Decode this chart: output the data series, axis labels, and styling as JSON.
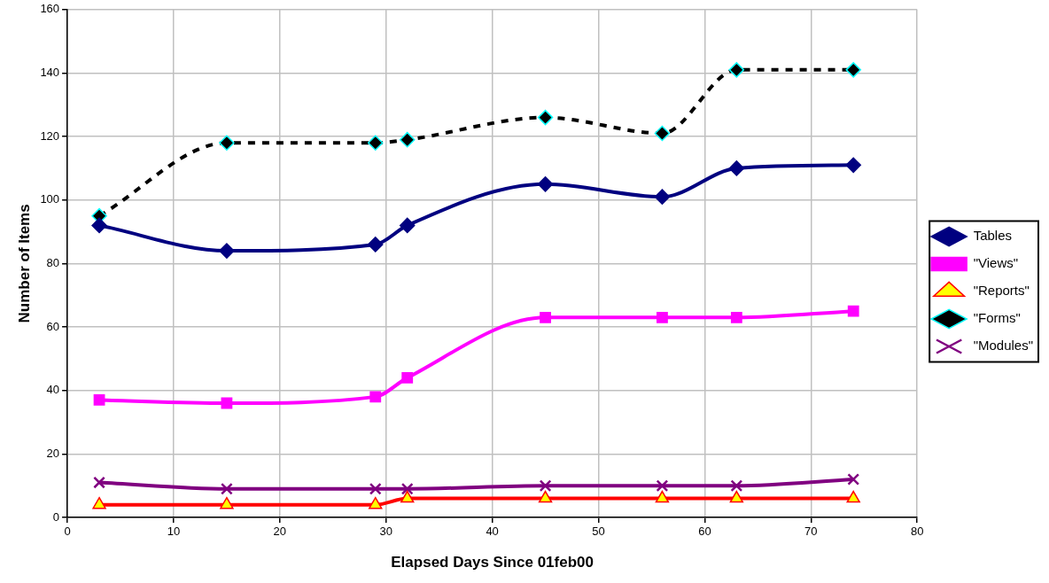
{
  "chart_data": {
    "type": "line",
    "xlabel": "Elapsed Days Since 01feb00",
    "ylabel": "Number of Items",
    "x": [
      3,
      15,
      29,
      32,
      45,
      56,
      63,
      74
    ],
    "xlim": [
      0,
      80
    ],
    "xticks": [
      0,
      10,
      20,
      30,
      40,
      50,
      60,
      70,
      80
    ],
    "ylim": [
      0,
      160
    ],
    "yticks": [
      0,
      20,
      40,
      60,
      80,
      100,
      120,
      140,
      160
    ],
    "grid": true,
    "legend": "right",
    "series": [
      {
        "name": "Tables",
        "color": "#000080",
        "marker": "diamond",
        "line_style": "solid",
        "values": [
          92,
          84,
          86,
          92,
          105,
          101,
          110,
          111
        ]
      },
      {
        "name": "\"Views\"",
        "color": "#ff00ff",
        "marker": "square",
        "line_style": "solid",
        "values": [
          37,
          36,
          38,
          44,
          63,
          63,
          63,
          65
        ]
      },
      {
        "name": "\"Reports\"",
        "color": "#ff0000",
        "marker": "triangle",
        "line_style": "solid",
        "values": [
          4,
          4,
          4,
          6,
          6,
          6,
          6,
          6
        ]
      },
      {
        "name": "\"Forms\"",
        "color": "#000000",
        "marker": "diamond",
        "line_style": "dashed",
        "values": [
          95,
          118,
          118,
          119,
          126,
          121,
          141,
          141
        ]
      },
      {
        "name": "\"Modules\"",
        "color": "#800080",
        "marker": "cross",
        "line_style": "solid",
        "values": [
          11,
          9,
          9,
          9,
          10,
          10,
          10,
          12
        ]
      }
    ]
  }
}
